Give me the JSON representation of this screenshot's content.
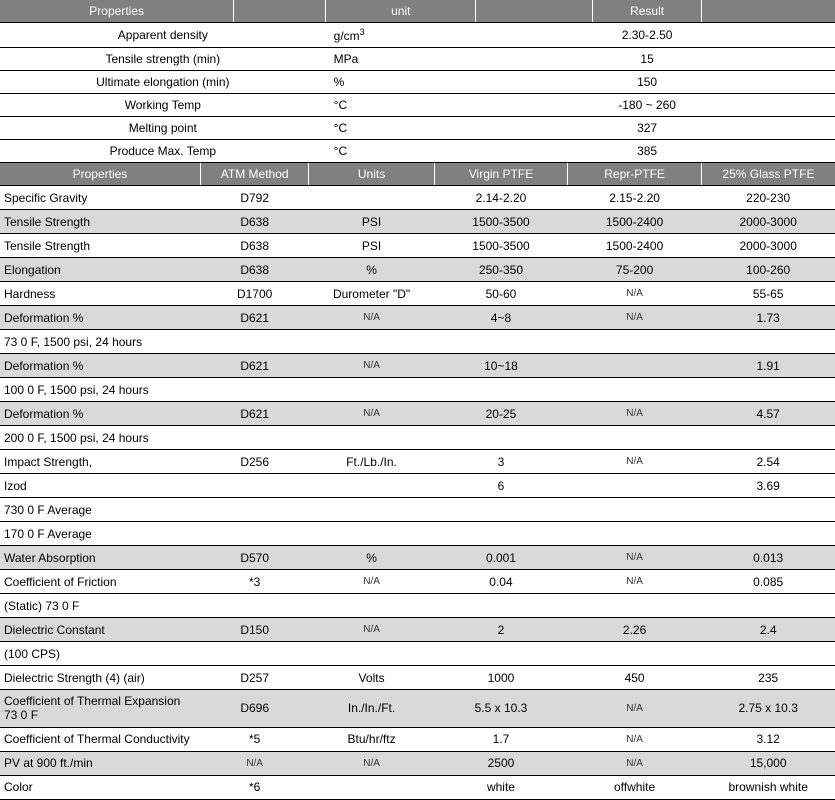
{
  "table1": {
    "headers": [
      "Properties",
      "",
      "unit",
      "",
      "Result",
      ""
    ],
    "col_widths": [
      "28%",
      "11%",
      "18%",
      "14%",
      "13%",
      "16%"
    ],
    "rows": [
      {
        "prop": "Apparent density",
        "unit_html": "g/cm<sup>3</sup>",
        "result": "2.30-2.50"
      },
      {
        "prop": "Tensile strength (min)",
        "unit": "MPa",
        "result": "15"
      },
      {
        "prop": "Ultimate elongation (min)",
        "unit": "%",
        "result": "150"
      },
      {
        "prop": "Working Temp",
        "unit": "°C",
        "result": "-180 ~ 260"
      },
      {
        "prop": "Melting point",
        "unit": "°C",
        "result": "327"
      },
      {
        "prop": "Produce Max. Temp",
        "unit": "°C",
        "result": "385"
      }
    ]
  },
  "table2": {
    "headers": [
      "Properties",
      "ATM Method",
      "Units",
      "Virgin PTFE",
      "Repr-PTFE",
      "25% Glass PTFE"
    ],
    "col_widths": [
      "24%",
      "13%",
      "15%",
      "16%",
      "16%",
      "16%"
    ],
    "rows": [
      {
        "c": [
          "Specific Gravity",
          "D792",
          "",
          "2.14-2.20",
          "2.15-2.20",
          "220-230"
        ],
        "alt": 0
      },
      {
        "c": [
          "Tensile Strength",
          "D638",
          "PSI",
          "1500-3500",
          "1500-2400",
          "2000-3000"
        ],
        "alt": 1
      },
      {
        "c": [
          "Tensile Strength",
          "D638",
          "PSI",
          "1500-3500",
          "1500-2400",
          "2000-3000"
        ],
        "alt": 0
      },
      {
        "c": [
          "Elongation",
          "D638",
          "%",
          "250-350",
          "75-200",
          "100-260"
        ],
        "alt": 1
      },
      {
        "c": [
          "Hardness",
          "D1700",
          "Durometer \"D\"",
          "50-60",
          "N/A",
          "55-65"
        ],
        "alt": 0,
        "na": [
          4
        ]
      },
      {
        "c": [
          "Deformation %",
          "D621",
          "N/A",
          "4~8",
          "N/A",
          "1.73"
        ],
        "alt": 1,
        "na": [
          2,
          4
        ]
      },
      {
        "c": [
          "73 0 F, 1500 psi, 24 hours",
          "",
          "",
          "",
          "",
          ""
        ],
        "alt": 0
      },
      {
        "c": [
          "Deformation %",
          "D621",
          "N/A",
          "10~18",
          "",
          "1.91"
        ],
        "alt": 1,
        "na": [
          2
        ]
      },
      {
        "c": [
          "100 0 F, 1500 psi, 24 hours",
          "",
          "",
          "",
          "",
          ""
        ],
        "alt": 0
      },
      {
        "c": [
          "Deformation %",
          "D621",
          "N/A",
          "20-25",
          "N/A",
          "4.57"
        ],
        "alt": 1,
        "na": [
          2,
          4
        ]
      },
      {
        "c": [
          "200 0 F, 1500 psi, 24 hours",
          "",
          "",
          "",
          "",
          ""
        ],
        "alt": 0
      },
      {
        "c": [
          "Impact Strength,",
          "D256",
          "Ft./Lb./In.",
          "3",
          "N/A",
          "2.54"
        ],
        "alt": 0,
        "na": [
          4
        ]
      },
      {
        "c": [
          "Izod",
          "",
          "",
          "6",
          "",
          "3.69"
        ],
        "alt": 0
      },
      {
        "c": [
          "730 0 F Average",
          "",
          "",
          "",
          "",
          ""
        ],
        "alt": 0
      },
      {
        "c": [
          "170 0 F Average",
          "",
          "",
          "",
          "",
          ""
        ],
        "alt": 0
      },
      {
        "c": [
          "Water Absorption",
          "D570",
          "%",
          "0.001",
          "N/A",
          "0.013"
        ],
        "alt": 1,
        "na": [
          4
        ]
      },
      {
        "c": [
          "Coefficient of Friction",
          "*3",
          "N/A",
          "0.04",
          "N/A",
          "0.085"
        ],
        "alt": 0,
        "na": [
          2,
          4
        ]
      },
      {
        "c": [
          "(Static) 73 0 F",
          "",
          "",
          "",
          "",
          ""
        ],
        "alt": 0
      },
      {
        "c": [
          "Dielectric Constant",
          "D150",
          "N/A",
          "2",
          "2.26",
          "2.4"
        ],
        "alt": 1,
        "na": [
          2
        ]
      },
      {
        "c": [
          "(100 CPS)",
          "",
          "",
          "",
          "",
          ""
        ],
        "alt": 0
      },
      {
        "c": [
          "Dielectric Strength (4) (air)",
          "D257",
          "Volts",
          "1000",
          "450",
          "235"
        ],
        "alt": 0
      },
      {
        "c": [
          "Coefficient of Thermal Expansion 73 0 F",
          "D696",
          "In./In./Ft.",
          "5.5 x 10.3",
          "N/A",
          "2.75 x 10.3"
        ],
        "alt": 1,
        "na": [
          4
        ],
        "tall": 1
      },
      {
        "c": [
          "Coefficient of Thermal Conductivity",
          "*5",
          "Btu/hr/ftz",
          "1.7",
          "N/A",
          "3.12"
        ],
        "alt": 0,
        "na": [
          4
        ]
      },
      {
        "c": [
          "PV at 900 ft./min",
          "N/A",
          "N/A",
          "2500",
          "N/A",
          "15,000"
        ],
        "alt": 1,
        "na": [
          1,
          2,
          4
        ]
      },
      {
        "c": [
          "Color",
          "*6",
          "",
          "white",
          "offwhite",
          "brownish white"
        ],
        "alt": 0
      }
    ]
  },
  "colors": {
    "header_bg": "#808080",
    "header_fg": "#ffffff",
    "alt_bg": "#d9d9d9",
    "border": "#000000"
  }
}
